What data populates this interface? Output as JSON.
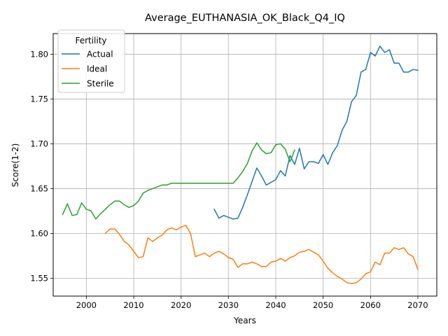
{
  "chart_data": {
    "type": "line",
    "title": "Average_EUTHANASIA_OK_Black_Q4_IQ",
    "xlabel": "Years",
    "ylabel": "Score(1-2)",
    "xlim": [
      1993,
      2074
    ],
    "ylim": [
      1.53,
      1.823
    ],
    "xticks": [
      2000,
      2010,
      2020,
      2030,
      2040,
      2050,
      2060,
      2070
    ],
    "yticks": [
      1.55,
      1.6,
      1.65,
      1.7,
      1.75,
      1.8
    ],
    "ytick_labels": [
      "1.55",
      "1.60",
      "1.65",
      "1.70",
      "1.75",
      "1.80"
    ],
    "grid": true,
    "legend": {
      "title": "Fertility",
      "placement": "top-left"
    },
    "series": [
      {
        "name": "Actual",
        "color": "#1f77b4",
        "points": [
          [
            2027,
            1.627
          ],
          [
            2028,
            1.617
          ],
          [
            2029,
            1.62
          ],
          [
            2030,
            1.618
          ],
          [
            2031,
            1.616
          ],
          [
            2032,
            1.617
          ],
          [
            2033,
            1.629
          ],
          [
            2034,
            1.643
          ],
          [
            2035,
            1.658
          ],
          [
            2036,
            1.673
          ],
          [
            2037,
            1.664
          ],
          [
            2038,
            1.654
          ],
          [
            2039,
            1.657
          ],
          [
            2040,
            1.66
          ],
          [
            2041,
            1.67
          ],
          [
            2042,
            1.664
          ],
          [
            2043,
            1.687
          ],
          [
            2044,
            1.677
          ],
          [
            2045,
            1.695
          ],
          [
            2046,
            1.672
          ],
          [
            2047,
            1.68
          ],
          [
            2048,
            1.68
          ],
          [
            2049,
            1.678
          ],
          [
            2050,
            1.688
          ],
          [
            2051,
            1.677
          ],
          [
            2052,
            1.69
          ],
          [
            2053,
            1.698
          ],
          [
            2054,
            1.715
          ],
          [
            2055,
            1.725
          ],
          [
            2056,
            1.747
          ],
          [
            2057,
            1.754
          ],
          [
            2058,
            1.78
          ],
          [
            2059,
            1.783
          ],
          [
            2060,
            1.802
          ],
          [
            2061,
            1.798
          ],
          [
            2062,
            1.809
          ],
          [
            2063,
            1.802
          ],
          [
            2064,
            1.805
          ],
          [
            2065,
            1.79
          ],
          [
            2066,
            1.79
          ],
          [
            2067,
            1.78
          ],
          [
            2068,
            1.78
          ],
          [
            2069,
            1.783
          ],
          [
            2070,
            1.782
          ]
        ]
      },
      {
        "name": "Ideal",
        "color": "#ff7f0e",
        "points": [
          [
            2004,
            1.6
          ],
          [
            2005,
            1.605
          ],
          [
            2006,
            1.605
          ],
          [
            2007,
            1.599
          ],
          [
            2008,
            1.591
          ],
          [
            2009,
            1.587
          ],
          [
            2010,
            1.58
          ],
          [
            2011,
            1.573
          ],
          [
            2012,
            1.574
          ],
          [
            2013,
            1.595
          ],
          [
            2014,
            1.591
          ],
          [
            2015,
            1.595
          ],
          [
            2016,
            1.598
          ],
          [
            2017,
            1.604
          ],
          [
            2018,
            1.606
          ],
          [
            2019,
            1.604
          ],
          [
            2020,
            1.607
          ],
          [
            2021,
            1.609
          ],
          [
            2022,
            1.6
          ],
          [
            2023,
            1.574
          ],
          [
            2024,
            1.576
          ],
          [
            2025,
            1.578
          ],
          [
            2026,
            1.574
          ],
          [
            2027,
            1.578
          ],
          [
            2028,
            1.58
          ],
          [
            2029,
            1.577
          ],
          [
            2030,
            1.573
          ],
          [
            2031,
            1.571
          ],
          [
            2032,
            1.562
          ],
          [
            2033,
            1.566
          ],
          [
            2034,
            1.566
          ],
          [
            2035,
            1.568
          ],
          [
            2036,
            1.566
          ],
          [
            2037,
            1.563
          ],
          [
            2038,
            1.563
          ],
          [
            2039,
            1.568
          ],
          [
            2040,
            1.569
          ],
          [
            2041,
            1.572
          ],
          [
            2042,
            1.569
          ],
          [
            2043,
            1.573
          ],
          [
            2044,
            1.575
          ],
          [
            2045,
            1.579
          ],
          [
            2046,
            1.58
          ],
          [
            2047,
            1.582
          ],
          [
            2048,
            1.579
          ],
          [
            2049,
            1.576
          ],
          [
            2050,
            1.569
          ],
          [
            2051,
            1.561
          ],
          [
            2052,
            1.556
          ],
          [
            2053,
            1.552
          ],
          [
            2054,
            1.549
          ],
          [
            2055,
            1.545
          ],
          [
            2056,
            1.544
          ],
          [
            2057,
            1.545
          ],
          [
            2058,
            1.549
          ],
          [
            2059,
            1.555
          ],
          [
            2060,
            1.557
          ],
          [
            2061,
            1.568
          ],
          [
            2062,
            1.565
          ],
          [
            2063,
            1.578
          ],
          [
            2064,
            1.578
          ],
          [
            2065,
            1.584
          ],
          [
            2066,
            1.582
          ],
          [
            2067,
            1.584
          ],
          [
            2068,
            1.577
          ],
          [
            2069,
            1.574
          ],
          [
            2070,
            1.56
          ]
        ]
      },
      {
        "name": "Sterile",
        "color": "#2ca02c",
        "points": [
          [
            1995,
            1.621
          ],
          [
            1996,
            1.633
          ],
          [
            1997,
            1.62
          ],
          [
            1998,
            1.621
          ],
          [
            1999,
            1.634
          ],
          [
            2000,
            1.627
          ],
          [
            2001,
            1.625
          ],
          [
            2002,
            1.616
          ],
          [
            2003,
            1.622
          ],
          [
            2004,
            1.627
          ],
          [
            2005,
            1.632
          ],
          [
            2006,
            1.636
          ],
          [
            2007,
            1.636
          ],
          [
            2008,
            1.632
          ],
          [
            2009,
            1.629
          ],
          [
            2010,
            1.631
          ],
          [
            2011,
            1.636
          ],
          [
            2012,
            1.645
          ],
          [
            2013,
            1.648
          ],
          [
            2014,
            1.65
          ],
          [
            2015,
            1.652
          ],
          [
            2016,
            1.654
          ],
          [
            2017,
            1.654
          ],
          [
            2018,
            1.656
          ],
          [
            2019,
            1.656
          ],
          [
            2020,
            1.656
          ],
          [
            2021,
            1.656
          ],
          [
            2022,
            1.656
          ],
          [
            2023,
            1.656
          ],
          [
            2024,
            1.656
          ],
          [
            2025,
            1.656
          ],
          [
            2026,
            1.656
          ],
          [
            2027,
            1.656
          ],
          [
            2028,
            1.656
          ],
          [
            2029,
            1.656
          ],
          [
            2030,
            1.656
          ],
          [
            2031,
            1.656
          ],
          [
            2032,
            1.662
          ],
          [
            2033,
            1.669
          ],
          [
            2034,
            1.678
          ],
          [
            2035,
            1.692
          ],
          [
            2036,
            1.701
          ],
          [
            2037,
            1.693
          ],
          [
            2038,
            1.689
          ],
          [
            2039,
            1.69
          ],
          [
            2040,
            1.699
          ],
          [
            2041,
            1.7
          ],
          [
            2042,
            1.694
          ],
          [
            2043,
            1.68
          ],
          [
            2044,
            1.693
          ]
        ]
      }
    ]
  }
}
